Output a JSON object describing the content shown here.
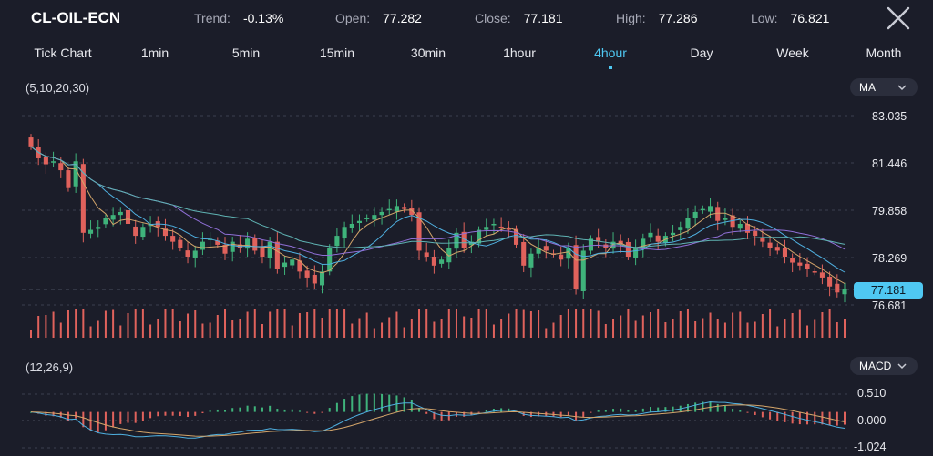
{
  "header": {
    "symbol": "CL-OIL-ECN",
    "trend_label": "Trend:",
    "trend_value": "-0.13%",
    "open_label": "Open:",
    "open_value": "77.282",
    "close_label": "Close:",
    "close_value": "77.181",
    "high_label": "High:",
    "high_value": "77.286",
    "low_label": "Low:",
    "low_value": "76.821",
    "close_icon": "close-icon"
  },
  "tabs": [
    {
      "label": "Tick Chart"
    },
    {
      "label": "1min"
    },
    {
      "label": "5min"
    },
    {
      "label": "15min"
    },
    {
      "label": "30min"
    },
    {
      "label": "1hour"
    },
    {
      "label": "4hour",
      "active": true
    },
    {
      "label": "Day"
    },
    {
      "label": "Week"
    },
    {
      "label": "Month"
    }
  ],
  "main_chart": {
    "indicator_params": "(5,10,20,30)",
    "indicator_select": "MA",
    "y_ticks": [
      "83.035",
      "81.446",
      "79.858",
      "78.269",
      "76.681"
    ],
    "last_price": "77.181"
  },
  "macd_panel": {
    "indicator_params": "(12,26,9)",
    "indicator_select": "MACD",
    "y_ticks": [
      "0.510",
      "0.000",
      "-1.024"
    ]
  },
  "colors": {
    "background": "#1b1d29",
    "up": "#3fb37b",
    "down": "#e0625c",
    "accent": "#4fc8f2",
    "ma5": "#d4a56a",
    "ma10": "#4fb0e0",
    "ma20": "#8f6fd6",
    "ma30": "#5fb3b3"
  },
  "chart_data": {
    "type": "candlestick",
    "ylim": [
      76.681,
      83.035
    ],
    "closes": [
      82.0,
      81.6,
      81.4,
      81.5,
      81.2,
      80.6,
      81.5,
      79.1,
      79.2,
      79.3,
      79.6,
      79.7,
      79.8,
      79.4,
      79.0,
      79.3,
      79.4,
      79.3,
      79.0,
      78.8,
      78.6,
      78.3,
      78.5,
      78.8,
      78.9,
      78.7,
      78.4,
      78.8,
      78.6,
      78.9,
      78.5,
      78.3,
      78.8,
      77.9,
      78.1,
      78.2,
      77.8,
      77.6,
      77.4,
      77.8,
      78.6,
      79.0,
      79.3,
      79.4,
      79.5,
      79.6,
      79.7,
      79.8,
      79.9,
      80.0,
      79.9,
      79.7,
      78.5,
      78.3,
      78.0,
      78.2,
      78.6,
      79.1,
      78.6,
      78.8,
      79.2,
      79.3,
      79.4,
      79.3,
      79.2,
      78.7,
      78.0,
      78.4,
      78.6,
      78.5,
      78.4,
      78.2,
      78.6,
      77.2,
      78.5,
      78.9,
      78.8,
      78.6,
      78.8,
      78.7,
      78.3,
      78.6,
      78.9,
      79.1,
      78.8,
      79.0,
      79.1,
      79.3,
      79.6,
      79.8,
      79.9,
      80.0,
      79.5,
      79.6,
      79.3,
      79.4,
      79.1,
      79.0,
      78.8,
      78.6,
      78.5,
      78.3,
      78.1,
      78.0,
      77.9,
      77.8,
      77.6,
      77.3,
      77.1,
      77.2
    ]
  }
}
